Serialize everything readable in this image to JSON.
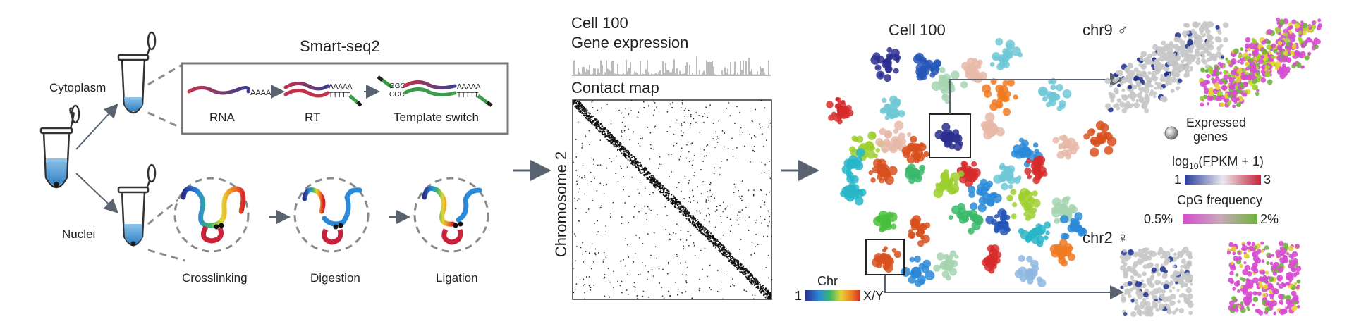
{
  "workflow": {
    "cytoplasm_label": "Cytoplasm",
    "nuclei_label": "Nuclei"
  },
  "smartseq": {
    "title": "Smart-seq2",
    "steps": [
      {
        "label": "RNA",
        "seq_top": "AAAAA"
      },
      {
        "label": "RT",
        "seq_top": "AAAAA",
        "seq_bottom": "TTTTT"
      },
      {
        "label": "Template switch",
        "left_top": "GGG",
        "left_bottom": "CCC",
        "seq_top": "AAAAA",
        "seq_bottom": "TTTTT"
      }
    ]
  },
  "hic": {
    "steps": [
      "Crosslinking",
      "Digestion",
      "Ligation"
    ]
  },
  "contact_panel": {
    "cell_label": "Cell 100",
    "gene_expression_label": "Gene expression",
    "contact_map_label": "Contact map",
    "axis_label": "Chromosome 2"
  },
  "structure_panel": {
    "cell_label": "Cell 100",
    "chr_legend_title": "Chr",
    "chr_legend_min": "1",
    "chr_legend_max": "X/Y"
  },
  "chromosomes": {
    "chr9_label": "chr9 ♂",
    "chr2_label": "chr2 ♀"
  },
  "legend": {
    "expressed_label_line1": "Expressed",
    "expressed_label_line2": "genes",
    "fpkm_prefix": "log",
    "fpkm_sub": "10",
    "fpkm_suffix": "(FPKM + 1)",
    "fpkm_min": "1",
    "fpkm_max": "3",
    "cpg_title": "CpG frequency",
    "cpg_min": "0.5%",
    "cpg_max": "2%"
  },
  "colors": {
    "arrow": "#5a6470",
    "frame": "#7a7a7a",
    "dashed": "#8a8a8a",
    "rna_red": "#c0334a",
    "rna_blue": "#3b3f8f",
    "template_green": "#3d9a4a",
    "fpkm_low": "#2a3d99",
    "fpkm_high": "#c8213a",
    "cpg_low": "#d64bd0",
    "cpg_high": "#6fb33c"
  }
}
